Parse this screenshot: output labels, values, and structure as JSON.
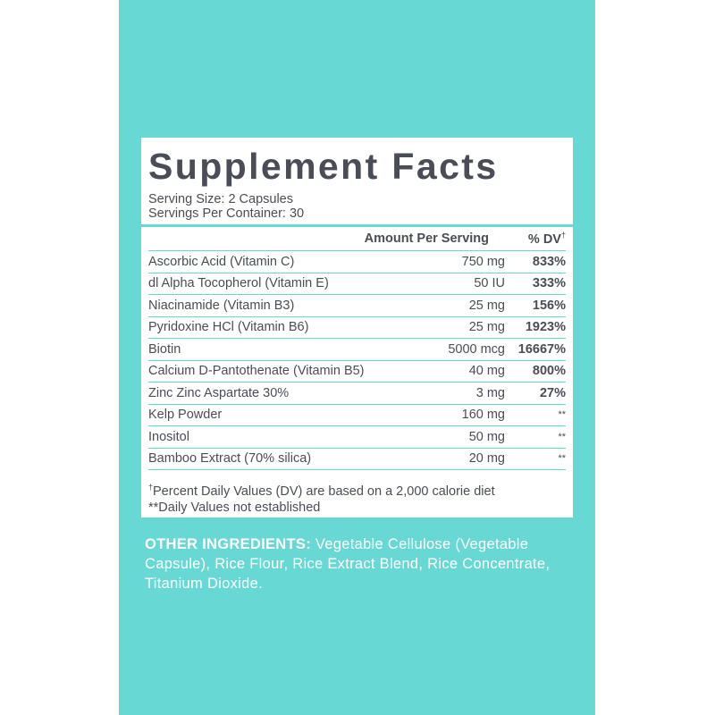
{
  "title": "Supplement Facts",
  "serving_size": "Serving Size: 2 Capsules",
  "servings_per_container": "Servings Per Container: 30",
  "header": {
    "amount": "Amount Per Serving",
    "dv": "% DV",
    "dv_mark": "†"
  },
  "rows": [
    {
      "name": "Ascorbic Acid (Vitamin C)",
      "amount": "750 mg",
      "dv": "833%"
    },
    {
      "name": "dl Alpha Tocopherol (Vitamin E)",
      "amount": "50 IU",
      "dv": "333%"
    },
    {
      "name": "Niacinamide (Vitamin B3)",
      "amount": "25 mg",
      "dv": "156%"
    },
    {
      "name": "Pyridoxine HCl (Vitamin B6)",
      "amount": "25 mg",
      "dv": "1923%"
    },
    {
      "name": "Biotin",
      "amount": "5000 mcg",
      "dv": "16667%"
    },
    {
      "name": "Calcium D-Pantothenate (Vitamin B5)",
      "amount": "40 mg",
      "dv": "800%"
    },
    {
      "name": "Zinc Zinc Aspartate 30%",
      "amount": "3 mg",
      "dv": "27%"
    },
    {
      "name": "Kelp Powder",
      "amount": "160 mg",
      "dv": "**"
    },
    {
      "name": "Inositol",
      "amount": "50 mg",
      "dv": "**"
    },
    {
      "name": "Bamboo Extract (70% silica)",
      "amount": "20 mg",
      "dv": "**"
    }
  ],
  "footnote_mark": "†",
  "footnote_1": "Percent Daily Values (DV) are based on a 2,000 calorie diet",
  "footnote_2": "**Daily Values not established",
  "other_ingredients": {
    "label": "OTHER INGREDIENTS:",
    "text": " Vegetable Cellulose (Vegetable Capsule), Rice Flour, Rice Extract Blend, Rice Concentrate, Titanium Dioxide."
  },
  "colors": {
    "panel": "#67d8d4",
    "text": "#4a4d55",
    "label_bg": "#ffffff"
  }
}
